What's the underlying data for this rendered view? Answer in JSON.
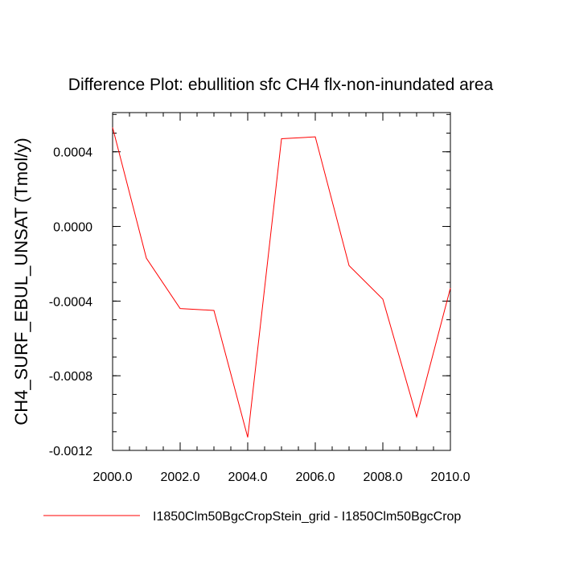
{
  "chart_data": {
    "type": "line",
    "title": "Difference Plot: ebullition sfc CH4 flx-non-inundated area",
    "xlabel": "",
    "ylabel": "CH4_SURF_EBUL_UNSAT  (Tmol/y)",
    "xlim": [
      2000,
      2010
    ],
    "ylim": [
      -0.0012,
      0.00061
    ],
    "x_ticks": [
      2000,
      2002,
      2004,
      2006,
      2008,
      2010
    ],
    "x_tick_labels": [
      "2000.0",
      "2002.0",
      "2004.0",
      "2006.0",
      "2008.0",
      "2010.0"
    ],
    "y_ticks": [
      0.0004,
      0.0,
      -0.0004,
      -0.0008,
      -0.0012
    ],
    "y_tick_labels": [
      "0.0004",
      "0.0000",
      "-0.0004",
      "-0.0008",
      "-0.0012"
    ],
    "grid": false,
    "legend_position": "bottom",
    "series": [
      {
        "name": "I1850Clm50BgcCropStein_grid - I1850Clm50BgcCrop",
        "color": "#ff0000",
        "x": [
          2000,
          2001,
          2002,
          2003,
          2004,
          2005,
          2006,
          2007,
          2008,
          2009,
          2010
        ],
        "y": [
          0.00053,
          -0.00017,
          -0.00044,
          -0.00045,
          -0.00113,
          0.00047,
          0.00048,
          -0.00021,
          -0.00039,
          -0.00102,
          -0.00033
        ]
      }
    ]
  }
}
